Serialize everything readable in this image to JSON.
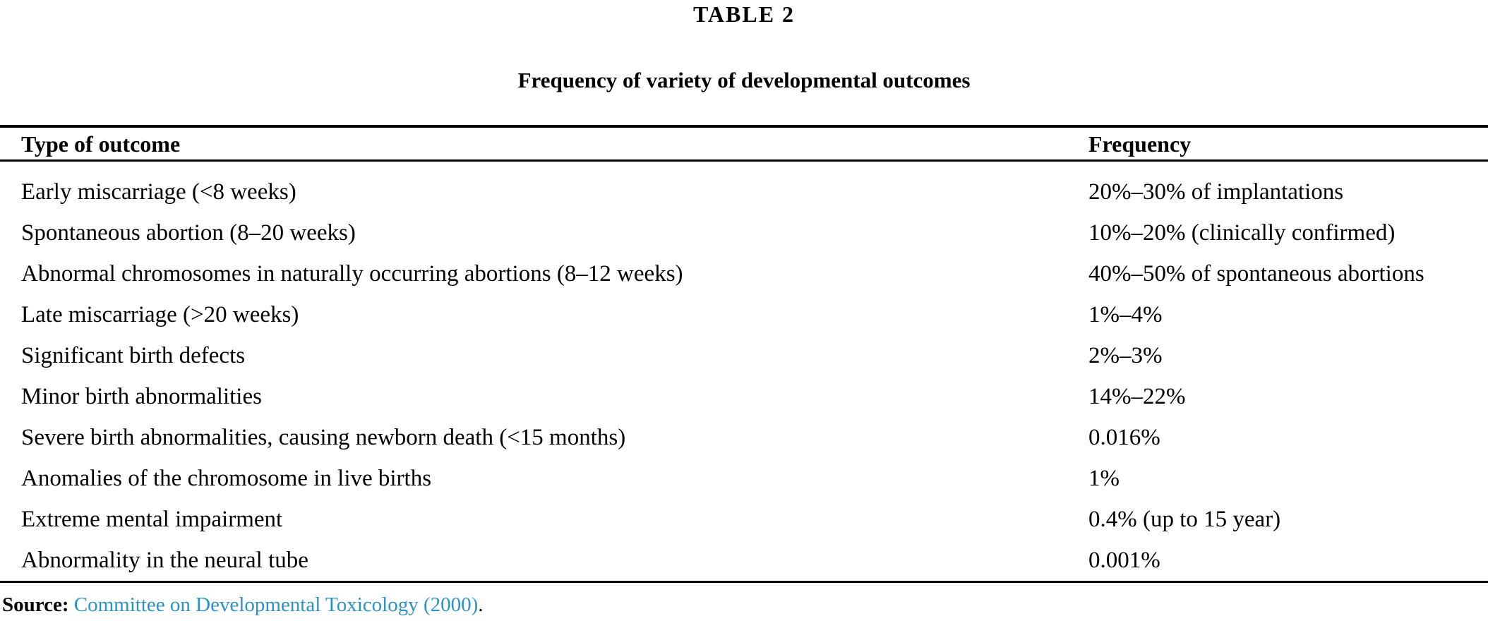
{
  "header": {
    "table_label": "TABLE 2",
    "table_title": "Frequency of variety of developmental outcomes"
  },
  "table": {
    "col_outcome": "Type of outcome",
    "col_frequency": "Frequency",
    "rows": [
      {
        "outcome": "Early miscarriage (<8 weeks)",
        "frequency": "20%–30% of implantations"
      },
      {
        "outcome": "Spontaneous abortion (8–20 weeks)",
        "frequency": "10%–20% (clinically confirmed)"
      },
      {
        "outcome": "Abnormal chromosomes in naturally occurring abortions (8–12 weeks)",
        "frequency": "40%–50% of spontaneous abortions"
      },
      {
        "outcome": "Late miscarriage (>20 weeks)",
        "frequency": "1%–4%"
      },
      {
        "outcome": "Significant birth defects",
        "frequency": "2%–3%"
      },
      {
        "outcome": "Minor birth abnormalities",
        "frequency": "14%–22%"
      },
      {
        "outcome": "Severe birth abnormalities, causing newborn death (<15 months)",
        "frequency": "0.016%"
      },
      {
        "outcome": "Anomalies of the chromosome in live births",
        "frequency": "1%"
      },
      {
        "outcome": "Extreme mental impairment",
        "frequency": "0.4% (up to 15 year)"
      },
      {
        "outcome": "Abnormality in the neural tube",
        "frequency": "0.001%"
      }
    ]
  },
  "source": {
    "label": "Source:",
    "link_text": "Committee on Developmental Toxicology (2000)",
    "suffix": "."
  },
  "colors": {
    "text": "#000000",
    "rule": "#000000",
    "link": "#2a93c8",
    "background": "#ffffff"
  }
}
